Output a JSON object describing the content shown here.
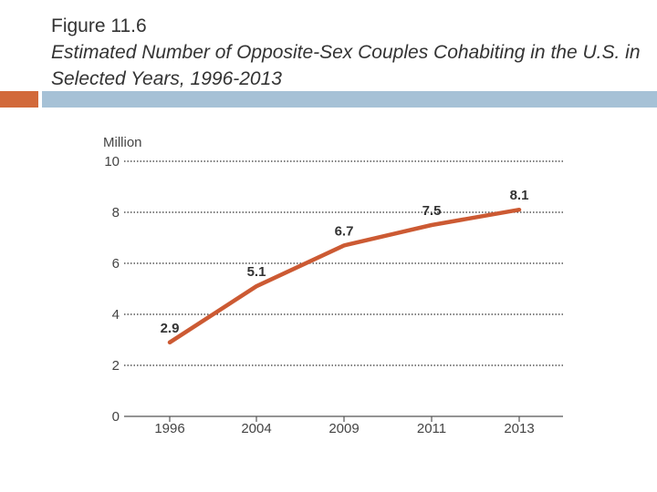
{
  "header": {
    "title": "Figure 11.6",
    "subtitle": "Estimated Number of Opposite-Sex Couples Cohabiting in the U.S. in Selected Years, 1996-2013"
  },
  "colors": {
    "accent_orange": "#d2693a",
    "accent_blue": "#a6c1d6",
    "series_line": "#cc5a33",
    "grid": "#333333",
    "axis": "#555555"
  },
  "chart_data": {
    "type": "line",
    "title": "",
    "xlabel": "",
    "ylabel": "Million",
    "categories": [
      "1996",
      "2004",
      "2009",
      "2011",
      "2013"
    ],
    "series": [
      {
        "values": [
          2.9,
          5.1,
          6.7,
          7.5,
          8.1
        ]
      }
    ],
    "data_labels": [
      "2.9",
      "5.1",
      "6.7",
      "7.5",
      "8.1"
    ],
    "ylim": [
      0,
      10
    ],
    "yticks": [
      0,
      2,
      4,
      6,
      8,
      10
    ],
    "grid": "horizontal-dotted",
    "legend": "none"
  }
}
